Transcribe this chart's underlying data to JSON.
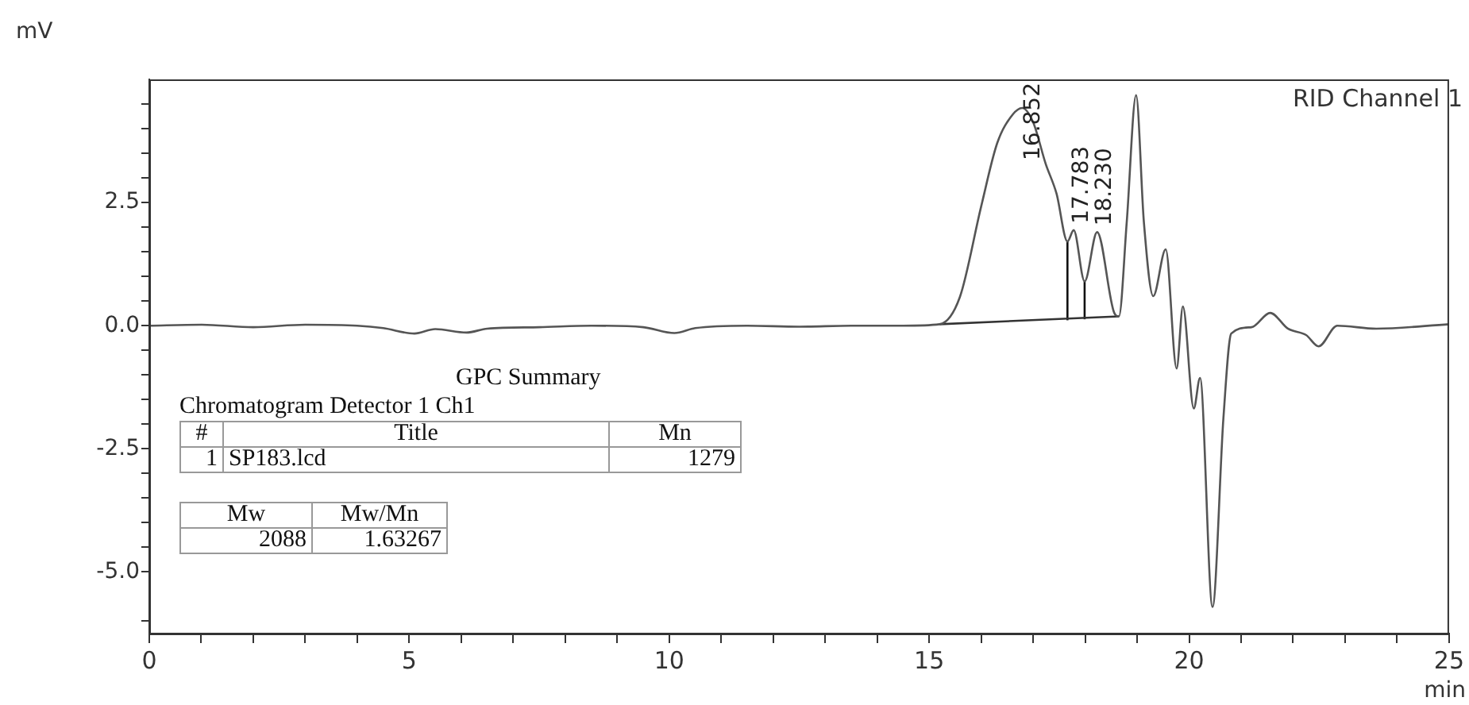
{
  "chart_data": {
    "type": "line",
    "xlabel": "min",
    "ylabel": "mV",
    "xlim": [
      0,
      25
    ],
    "ylim": [
      -6.25,
      5
    ],
    "xticks": [
      0,
      {
        "value": 1,
        "label": null
      },
      {
        "value": 2,
        "label": null
      },
      {
        "value": 3,
        "label": null
      },
      {
        "value": 4,
        "label": null
      },
      5,
      {
        "value": 6,
        "label": null
      },
      {
        "value": 7,
        "label": null
      },
      {
        "value": 8,
        "label": null
      },
      {
        "value": 9,
        "label": null
      },
      10,
      {
        "value": 11,
        "label": null
      },
      {
        "value": 12,
        "label": null
      },
      {
        "value": 13,
        "label": null
      },
      {
        "value": 14,
        "label": null
      },
      15,
      {
        "value": 16,
        "label": null
      },
      {
        "value": 17,
        "label": null
      },
      {
        "value": 18,
        "label": null
      },
      {
        "value": 19,
        "label": null
      },
      20,
      {
        "value": 21,
        "label": null
      },
      {
        "value": 22,
        "label": null
      },
      {
        "value": 23,
        "label": null
      },
      {
        "value": 24,
        "label": null
      },
      25
    ],
    "yticks": [
      {
        "value": -6,
        "label": null
      },
      {
        "value": -5,
        "label": "-5.0"
      },
      {
        "value": -4.5,
        "label": null
      },
      {
        "value": -4,
        "label": null
      },
      {
        "value": -3.5,
        "label": null
      },
      {
        "value": -3,
        "label": null
      },
      {
        "value": -2.5,
        "label": "-2.5"
      },
      {
        "value": -2,
        "label": null
      },
      {
        "value": -1.5,
        "label": null
      },
      {
        "value": -1,
        "label": null
      },
      {
        "value": -0.5,
        "label": null
      },
      {
        "value": 0,
        "label": "0.0"
      },
      {
        "value": 0.5,
        "label": null
      },
      {
        "value": 1,
        "label": null
      },
      {
        "value": 1.5,
        "label": null
      },
      {
        "value": 2,
        "label": null
      },
      {
        "value": 2.5,
        "label": "2.5"
      },
      {
        "value": 3,
        "label": null
      },
      {
        "value": 3.5,
        "label": null
      },
      {
        "value": 4,
        "label": null
      },
      {
        "value": 4.5,
        "label": null
      }
    ],
    "legend": false,
    "series": [
      {
        "color": "#555555",
        "x": [
          0,
          1,
          2,
          3,
          4,
          4.5,
          5.1,
          5.5,
          6.1,
          6.5,
          7.5,
          8.5,
          9.5,
          10.1,
          10.5,
          11.5,
          12.5,
          13.5,
          14.5,
          15.2,
          15.59,
          16.0,
          16.31,
          16.61,
          16.79,
          17.0,
          17.24,
          17.45,
          17.66,
          17.78,
          17.99,
          18.23,
          18.56,
          18.65,
          18.8,
          18.98,
          19.13,
          19.31,
          19.55,
          19.76,
          19.88,
          20.09,
          20.21,
          20.45,
          20.66,
          20.81,
          21.2,
          21.56,
          21.9,
          22.25,
          22.49,
          22.85,
          23.6,
          25
        ],
        "values": [
          0.0,
          0.02,
          -0.03,
          0.02,
          0.0,
          -0.05,
          -0.16,
          -0.07,
          -0.14,
          -0.06,
          -0.03,
          0.0,
          -0.03,
          -0.15,
          -0.05,
          0.0,
          -0.02,
          0.0,
          0.0,
          0.03,
          0.58,
          2.42,
          3.71,
          4.29,
          4.42,
          4.13,
          3.29,
          2.68,
          1.71,
          1.94,
          0.9,
          1.9,
          0.26,
          0.19,
          2.1,
          4.68,
          2.1,
          0.6,
          1.55,
          -0.87,
          0.39,
          -1.68,
          -1.06,
          -5.71,
          -1.87,
          -0.16,
          -0.03,
          0.26,
          -0.06,
          -0.19,
          -0.42,
          0.0,
          -0.06,
          0.03
        ]
      },
      {
        "color": "#333333",
        "x": [
          15.2,
          18.65
        ],
        "values": [
          0.03,
          0.19
        ]
      },
      {
        "color": "#111111",
        "x": [
          17.66,
          17.66
        ],
        "values": [
          0.11,
          1.71
        ]
      },
      {
        "color": "#111111",
        "x": [
          17.99,
          17.99
        ],
        "values": [
          0.13,
          0.9
        ]
      }
    ],
    "annotations": [
      "RID Channel 1",
      {
        "text": "16.852",
        "x": 16.852,
        "y": 4.35
      },
      {
        "text": "17.783",
        "x": 17.783,
        "y": 1.94
      },
      {
        "text": "18.230",
        "x": 18.23,
        "y": 1.9
      },
      "GPC Summary",
      "Chromatogram Detector 1 Ch1",
      "#",
      "Title",
      "Mn",
      "1",
      "SP183.lcd",
      "1279",
      "Mw",
      "Mw/Mn",
      "2088",
      "1.63267"
    ]
  }
}
